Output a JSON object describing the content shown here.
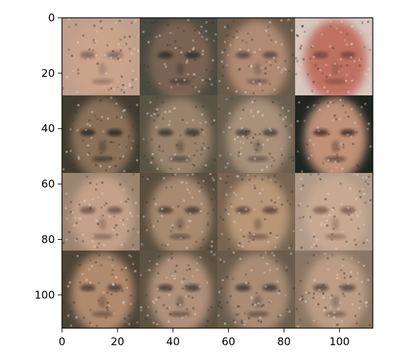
{
  "figure": {
    "image_description_grid": {
      "rows": 4,
      "cols": 4
    },
    "x_ticks": [
      "0",
      "20",
      "40",
      "60",
      "80",
      "100"
    ],
    "y_ticks": [
      "0",
      "20",
      "40",
      "60",
      "80",
      "100"
    ],
    "tiles": [
      [
        {
          "bg": "#bfa08c",
          "skin": "#c9a38a",
          "shade": "#8a6e60"
        },
        {
          "bg": "#4a4a40",
          "skin": "#7a6452",
          "shade": "#3e3630"
        },
        {
          "bg": "#6a5a48",
          "skin": "#b08a72",
          "shade": "#6a5246"
        },
        {
          "bg": "#d8c8c0",
          "skin": "#c07060",
          "shade": "#7a5040"
        }
      ],
      [
        {
          "bg": "#403c30",
          "skin": "#8a7058",
          "shade": "#3a302a"
        },
        {
          "bg": "#5a5444",
          "skin": "#9a826c",
          "shade": "#4a4038"
        },
        {
          "bg": "#6a5e4e",
          "skin": "#a8907a",
          "shade": "#5a4c42"
        },
        {
          "bg": "#1e2420",
          "skin": "#c09078",
          "shade": "#5a3a30"
        }
      ],
      [
        {
          "bg": "#9a8470",
          "skin": "#c4a088",
          "shade": "#7a5e52"
        },
        {
          "bg": "#5a4e3e",
          "skin": "#a88a70",
          "shade": "#5a4638"
        },
        {
          "bg": "#786450",
          "skin": "#b89678",
          "shade": "#6a5040"
        },
        {
          "bg": "#b09a88",
          "skin": "#c8a892",
          "shade": "#86685a"
        }
      ],
      [
        {
          "bg": "#4e4436",
          "skin": "#b08a6e",
          "shade": "#5e4a3c"
        },
        {
          "bg": "#5e5242",
          "skin": "#b0907a",
          "shade": "#5a483c"
        },
        {
          "bg": "#6a5c4c",
          "skin": "#a88c76",
          "shade": "#54443a"
        },
        {
          "bg": "#8a7664",
          "skin": "#bc9c84",
          "shade": "#6a5446"
        }
      ]
    ]
  }
}
